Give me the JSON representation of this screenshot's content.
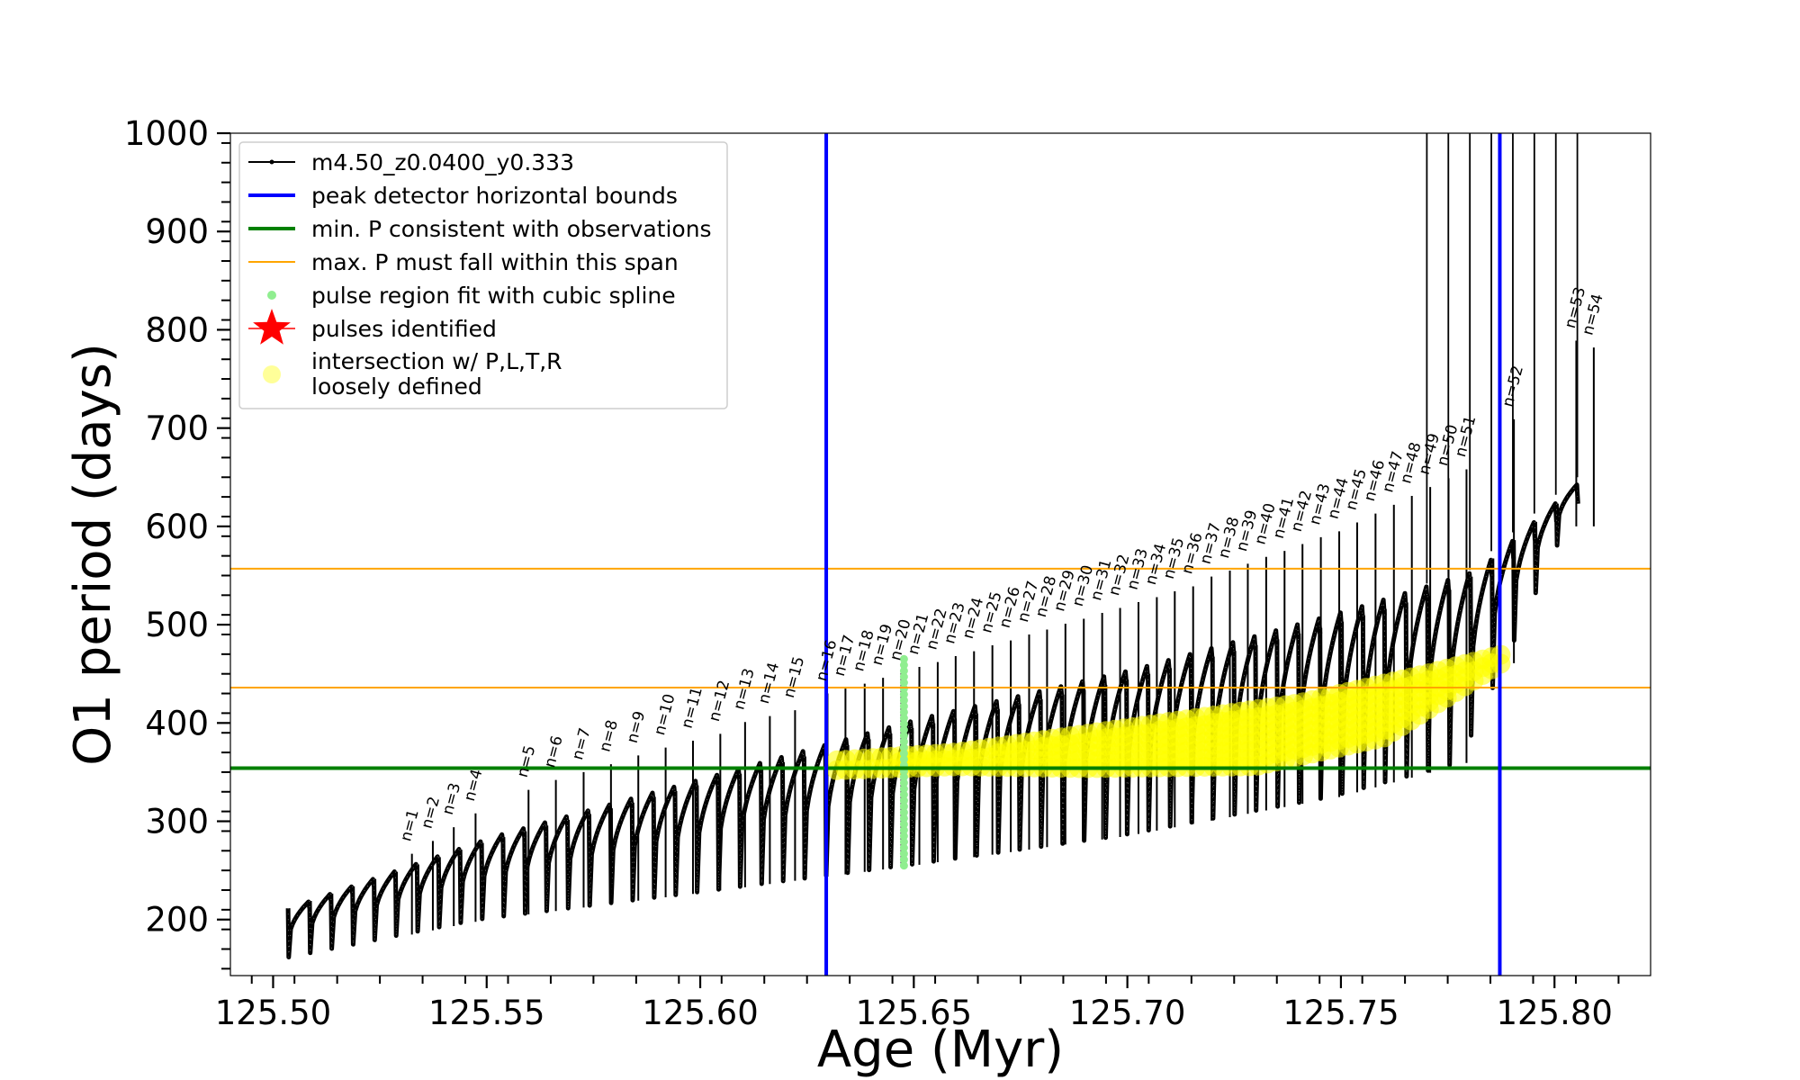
{
  "chart_data": {
    "type": "line",
    "xlabel": "Age (Myr)",
    "ylabel": "O1 period (days)",
    "xlim": [
      125.49,
      125.8225
    ],
    "ylim": [
      143,
      1000
    ],
    "x_ticks": [
      125.5,
      125.55,
      125.6,
      125.65,
      125.7,
      125.75,
      125.8
    ],
    "x_tick_labels": [
      "125.50",
      "125.55",
      "125.60",
      "125.65",
      "125.70",
      "125.75",
      "125.80"
    ],
    "y_ticks": [
      200,
      300,
      400,
      500,
      600,
      700,
      800,
      900,
      1000
    ],
    "y_tick_labels": [
      "200",
      "300",
      "400",
      "500",
      "600",
      "700",
      "800",
      "900",
      "1000"
    ],
    "grid": false,
    "legend_position": "top-left",
    "colors": {
      "track": "#000000",
      "peak_bounds": "#0000ff",
      "min_period": "#008000",
      "max_period_span": "#ffa500",
      "spline_fit": "#90ee90",
      "pulses": "#ff0000",
      "intersection": "#ffff00"
    },
    "legend": [
      {
        "label": "m4.50_z0.0400_y0.333",
        "kind": "line-dot",
        "color": "#000000"
      },
      {
        "label": "peak detector horizontal bounds",
        "kind": "line-thick",
        "color": "#0000ff"
      },
      {
        "label": "min. P consistent with observations",
        "kind": "line-thick",
        "color": "#008000"
      },
      {
        "label": "max. P must fall within this span",
        "kind": "line-thin",
        "color": "#ffa500"
      },
      {
        "label": "pulse region fit with cubic spline",
        "kind": "dot",
        "color": "#90ee90"
      },
      {
        "label": "pulses identified",
        "kind": "star",
        "color": "#ff0000"
      },
      {
        "label": "intersection w/ P,L,T,R\nloosely defined",
        "kind": "circle",
        "color": "#ffff00"
      }
    ],
    "vertical_lines": [
      {
        "name": "peak detector horizontal bounds",
        "x": 125.6295
      },
      {
        "name": "peak detector horizontal bounds",
        "x": 125.7872
      }
    ],
    "horizontal_lines": [
      {
        "name": "min. P consistent with observations",
        "y": 354
      },
      {
        "name": "max. P must fall within this span",
        "y": 436
      },
      {
        "name": "max. P must fall within this span",
        "y": 557
      }
    ],
    "pulse_track": {
      "x_start": 125.5035,
      "x_end": 125.8055,
      "n_cycles": 60,
      "envelope_points": [
        {
          "x": 125.504,
          "upper": 215,
          "lower": 160
        },
        {
          "x": 125.55,
          "upper": 285,
          "lower": 200
        },
        {
          "x": 125.6,
          "upper": 345,
          "lower": 227
        },
        {
          "x": 125.65,
          "upper": 405,
          "lower": 255
        },
        {
          "x": 125.7,
          "upper": 455,
          "lower": 285
        },
        {
          "x": 125.75,
          "upper": 515,
          "lower": 325
        },
        {
          "x": 125.78,
          "upper": 555,
          "lower": 360
        },
        {
          "x": 125.805,
          "upper": 650,
          "lower": 600
        }
      ]
    },
    "pulse_labels": [
      {
        "label": "n=1",
        "x": 125.5325,
        "y": 275
      },
      {
        "label": "n=2",
        "x": 125.5374,
        "y": 288
      },
      {
        "label": "n=3",
        "x": 125.5423,
        "y": 302
      },
      {
        "label": "n=4",
        "x": 125.5474,
        "y": 316
      },
      {
        "label": "n=5",
        "x": 125.5598,
        "y": 340
      },
      {
        "label": "n=6",
        "x": 125.5662,
        "y": 350
      },
      {
        "label": "n=7",
        "x": 125.5727,
        "y": 358
      },
      {
        "label": "n=8",
        "x": 125.5791,
        "y": 366
      },
      {
        "label": "n=9",
        "x": 125.5855,
        "y": 375
      },
      {
        "label": "n=10",
        "x": 125.5919,
        "y": 383
      },
      {
        "label": "n=11",
        "x": 125.5983,
        "y": 390
      },
      {
        "label": "n=12",
        "x": 125.6047,
        "y": 397
      },
      {
        "label": "n=13",
        "x": 125.6105,
        "y": 409
      },
      {
        "label": "n=14",
        "x": 125.6163,
        "y": 415
      },
      {
        "label": "n=15",
        "x": 125.6222,
        "y": 421
      },
      {
        "label": "n=16",
        "x": 125.6298,
        "y": 438
      },
      {
        "label": "n=17",
        "x": 125.634,
        "y": 443
      },
      {
        "label": "n=18",
        "x": 125.6385,
        "y": 448
      },
      {
        "label": "n=19",
        "x": 125.6428,
        "y": 454
      },
      {
        "label": "n=20",
        "x": 125.6471,
        "y": 459
      },
      {
        "label": "n=21",
        "x": 125.6513,
        "y": 465
      },
      {
        "label": "n=22",
        "x": 125.6556,
        "y": 470
      },
      {
        "label": "n=23",
        "x": 125.6598,
        "y": 476
      },
      {
        "label": "n=24",
        "x": 125.6641,
        "y": 481
      },
      {
        "label": "n=25",
        "x": 125.6684,
        "y": 487
      },
      {
        "label": "n=26",
        "x": 125.6727,
        "y": 492
      },
      {
        "label": "n=27",
        "x": 125.677,
        "y": 498
      },
      {
        "label": "n=28",
        "x": 125.6812,
        "y": 503
      },
      {
        "label": "n=29",
        "x": 125.6855,
        "y": 509
      },
      {
        "label": "n=30",
        "x": 125.6898,
        "y": 514
      },
      {
        "label": "n=31",
        "x": 125.6941,
        "y": 520
      },
      {
        "label": "n=32",
        "x": 125.6983,
        "y": 525
      },
      {
        "label": "n=33",
        "x": 125.7026,
        "y": 531
      },
      {
        "label": "n=34",
        "x": 125.7069,
        "y": 536
      },
      {
        "label": "n=35",
        "x": 125.7111,
        "y": 542
      },
      {
        "label": "n=36",
        "x": 125.7154,
        "y": 547
      },
      {
        "label": "n=37",
        "x": 125.7197,
        "y": 557
      },
      {
        "label": "n=38",
        "x": 125.724,
        "y": 563
      },
      {
        "label": "n=39",
        "x": 125.7282,
        "y": 570
      },
      {
        "label": "n=40",
        "x": 125.7325,
        "y": 577
      },
      {
        "label": "n=41",
        "x": 125.7368,
        "y": 583
      },
      {
        "label": "n=42",
        "x": 125.741,
        "y": 590
      },
      {
        "label": "n=43",
        "x": 125.7453,
        "y": 597
      },
      {
        "label": "n=44",
        "x": 125.7496,
        "y": 603
      },
      {
        "label": "n=45",
        "x": 125.7538,
        "y": 612
      },
      {
        "label": "n=46",
        "x": 125.7581,
        "y": 621
      },
      {
        "label": "n=47",
        "x": 125.7624,
        "y": 630
      },
      {
        "label": "n=48",
        "x": 125.7666,
        "y": 639
      },
      {
        "label": "n=49",
        "x": 125.7709,
        "y": 648
      },
      {
        "label": "n=50",
        "x": 125.7752,
        "y": 657
      },
      {
        "label": "n=51",
        "x": 125.7794,
        "y": 666
      },
      {
        "label": "n=52",
        "x": 125.7905,
        "y": 717
      },
      {
        "label": "n=53",
        "x": 125.8051,
        "y": 797
      },
      {
        "label": "n=54",
        "x": 125.8092,
        "y": 790
      }
    ],
    "spline_fit": {
      "x": 125.6477,
      "y_min": 255,
      "y_max": 470
    },
    "intersection_region": {
      "x_start": 125.632,
      "x_end": 125.788,
      "upper_envelope": [
        {
          "x": 125.632,
          "y": 362
        },
        {
          "x": 125.66,
          "y": 370
        },
        {
          "x": 125.7,
          "y": 395
        },
        {
          "x": 125.74,
          "y": 420
        },
        {
          "x": 125.77,
          "y": 450
        },
        {
          "x": 125.788,
          "y": 470
        }
      ],
      "lower_envelope": [
        {
          "x": 125.632,
          "y": 352
        },
        {
          "x": 125.66,
          "y": 356
        },
        {
          "x": 125.69,
          "y": 354
        },
        {
          "x": 125.73,
          "y": 356
        },
        {
          "x": 125.76,
          "y": 385
        },
        {
          "x": 125.788,
          "y": 462
        }
      ]
    }
  }
}
